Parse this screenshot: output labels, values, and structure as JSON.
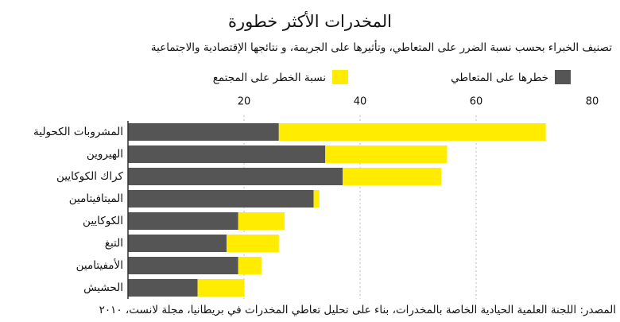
{
  "chart_data": {
    "type": "stacked-bar-horizontal",
    "title": "المخدرات الأكثر خطورة",
    "subtitle": "تصنيف الخبراء بحسب  نسبة الضرر على المتعاطي، وتأثيرها على الجريمة، و نتائجها الإقتصادية والاجتماعية",
    "source": "المصدر: اللجنة العلمية الحيادية الخاصة بالمخدرات، بناء على تحليل تعاطي المخدرات في بريطانيا، مجلة لانست، ٢٠١٠",
    "categories": [
      "المشروبات الكحولية",
      "الهيروين",
      "كراك الكوكايين",
      "الميتافيتامين",
      "الكوكايين",
      "التبغ",
      "الأمفيتامين",
      "الحشيش"
    ],
    "series": [
      {
        "name": "خطرها على المتعاطي",
        "color": "#555555",
        "values": [
          26,
          34,
          37,
          32,
          19,
          17,
          19,
          12
        ]
      },
      {
        "name": "نسبة الخطر على المجتمع",
        "color": "#ffec00",
        "values": [
          46,
          21,
          17,
          1,
          8,
          9,
          4,
          8
        ]
      }
    ],
    "xlim": [
      0,
      80
    ],
    "xticks": [
      20,
      40,
      60,
      80
    ],
    "grid": true
  }
}
